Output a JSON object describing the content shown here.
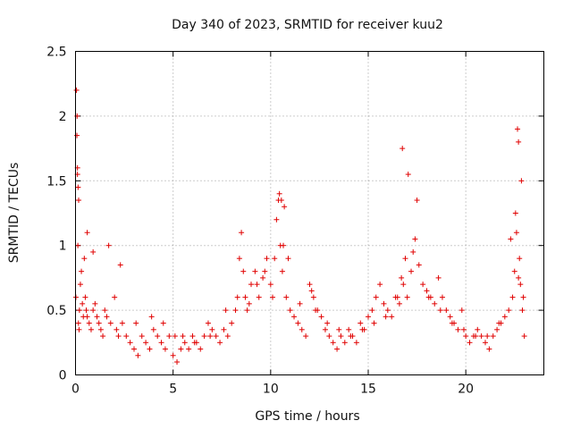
{
  "chart_data": {
    "type": "scatter",
    "title": "Day 340 of 2023, SRMTID for receiver kuu2",
    "xlabel": "GPS time / hours",
    "ylabel": "SRMTID / TECUs",
    "xlim": [
      0,
      24
    ],
    "ylim": [
      0,
      2.5
    ],
    "xticks": [
      0,
      5,
      10,
      15,
      20
    ],
    "xtick_labels": [
      "0",
      "5",
      "10",
      "15",
      "20"
    ],
    "yticks": [
      0,
      0.5,
      1,
      1.5,
      2,
      2.5
    ],
    "ytick_labels": [
      "0",
      "0.5",
      "1",
      "1.5",
      "2",
      "2.5"
    ],
    "grid": true,
    "marker": "+",
    "color": "#e00000",
    "series": [
      {
        "name": "SRMTID",
        "x": [
          0.02,
          0.05,
          0.07,
          0.1,
          0.12,
          0.15,
          0.18,
          0.2,
          0.25,
          0.3,
          0.35,
          0.4,
          0.45,
          0.5,
          0.55,
          0.6,
          0.7,
          0.8,
          0.9,
          1.0,
          1.1,
          1.2,
          1.3,
          1.4,
          1.5,
          1.6,
          1.8,
          2.0,
          2.1,
          2.2,
          2.4,
          2.6,
          2.8,
          3.0,
          3.2,
          3.4,
          3.6,
          3.8,
          4.0,
          4.2,
          4.4,
          4.6,
          4.8,
          5.0,
          5.2,
          5.4,
          5.6,
          5.8,
          6.0,
          6.2,
          6.4,
          6.6,
          6.8,
          7.0,
          7.2,
          7.4,
          7.6,
          7.8,
          8.0,
          8.2,
          8.4,
          8.5,
          8.6,
          8.7,
          8.8,
          9.0,
          9.2,
          9.4,
          9.6,
          9.8,
          10.0,
          10.2,
          10.3,
          10.4,
          10.5,
          10.6,
          10.7,
          10.8,
          11.0,
          11.2,
          11.4,
          11.6,
          11.8,
          12.0,
          12.1,
          12.2,
          12.4,
          12.6,
          12.8,
          13.0,
          13.2,
          13.4,
          13.6,
          13.8,
          14.0,
          14.2,
          14.4,
          14.6,
          14.8,
          15.0,
          15.2,
          15.4,
          15.6,
          15.8,
          16.0,
          16.2,
          16.4,
          16.6,
          16.7,
          16.8,
          16.9,
          17.0,
          17.2,
          17.3,
          17.4,
          17.6,
          17.8,
          18.0,
          18.2,
          18.4,
          18.6,
          18.8,
          19.0,
          19.2,
          19.4,
          19.6,
          19.8,
          20.0,
          20.2,
          20.4,
          20.6,
          20.8,
          21.0,
          21.2,
          21.4,
          21.6,
          21.8,
          22.0,
          22.2,
          22.4,
          22.5,
          22.6,
          22.7,
          22.75,
          22.8,
          22.9,
          23.0,
          0.08,
          0.1,
          0.13,
          0.16,
          0.6,
          0.9,
          1.7,
          2.3,
          3.1,
          3.9,
          4.5,
          5.1,
          5.5,
          6.1,
          6.9,
          7.7,
          8.3,
          8.9,
          9.3,
          9.7,
          10.1,
          10.45,
          10.55,
          10.65,
          10.9,
          11.5,
          12.3,
          12.9,
          13.5,
          14.1,
          14.7,
          15.3,
          15.9,
          16.5,
          16.75,
          17.05,
          17.5,
          18.1,
          18.7,
          19.3,
          19.9,
          20.5,
          21.1,
          21.7,
          22.3,
          22.55,
          22.65,
          22.7,
          22.85,
          22.95
        ],
        "y": [
          0.6,
          2.2,
          1.85,
          1.6,
          1.0,
          0.4,
          0.35,
          0.5,
          0.7,
          0.8,
          0.55,
          0.45,
          0.9,
          0.6,
          0.5,
          0.45,
          0.4,
          0.35,
          0.5,
          0.55,
          0.45,
          0.4,
          0.35,
          0.3,
          0.5,
          0.45,
          0.4,
          0.6,
          0.35,
          0.3,
          0.4,
          0.3,
          0.25,
          0.2,
          0.15,
          0.3,
          0.25,
          0.2,
          0.35,
          0.3,
          0.25,
          0.2,
          0.3,
          0.15,
          0.1,
          0.2,
          0.25,
          0.2,
          0.3,
          0.25,
          0.2,
          0.3,
          0.4,
          0.35,
          0.3,
          0.25,
          0.35,
          0.3,
          0.4,
          0.5,
          0.9,
          1.1,
          0.8,
          0.6,
          0.5,
          0.7,
          0.8,
          0.6,
          0.75,
          0.9,
          0.7,
          0.9,
          1.2,
          1.35,
          1.0,
          0.8,
          1.3,
          0.6,
          0.5,
          0.45,
          0.4,
          0.35,
          0.3,
          0.7,
          0.65,
          0.6,
          0.5,
          0.45,
          0.35,
          0.3,
          0.25,
          0.2,
          0.3,
          0.25,
          0.35,
          0.3,
          0.25,
          0.4,
          0.35,
          0.45,
          0.5,
          0.6,
          0.7,
          0.55,
          0.5,
          0.45,
          0.6,
          0.55,
          0.75,
          0.7,
          0.9,
          0.6,
          0.8,
          0.95,
          1.05,
          0.85,
          0.7,
          0.65,
          0.6,
          0.55,
          0.75,
          0.6,
          0.5,
          0.45,
          0.4,
          0.35,
          0.5,
          0.3,
          0.25,
          0.3,
          0.35,
          0.3,
          0.25,
          0.2,
          0.3,
          0.35,
          0.4,
          0.45,
          0.5,
          0.6,
          0.8,
          1.1,
          0.75,
          0.9,
          0.7,
          0.5,
          0.3,
          2.0,
          1.55,
          1.45,
          1.35,
          1.1,
          0.95,
          1.0,
          0.85,
          0.4,
          0.45,
          0.4,
          0.3,
          0.3,
          0.25,
          0.3,
          0.5,
          0.6,
          0.55,
          0.7,
          0.8,
          0.6,
          1.4,
          1.35,
          1.0,
          0.9,
          0.55,
          0.5,
          0.4,
          0.35,
          0.3,
          0.35,
          0.4,
          0.45,
          0.6,
          1.75,
          1.55,
          1.35,
          0.6,
          0.5,
          0.4,
          0.35,
          0.3,
          0.3,
          0.4,
          1.05,
          1.25,
          1.9,
          1.8,
          1.5,
          0.6
        ]
      }
    ]
  }
}
